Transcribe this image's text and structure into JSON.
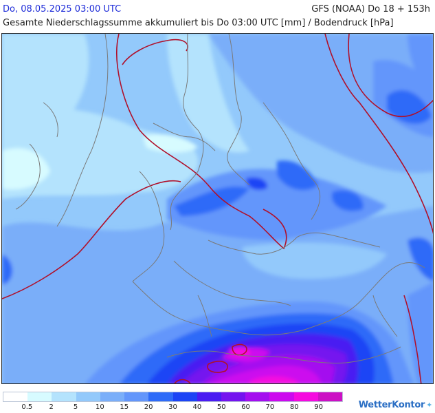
{
  "header": {
    "date_label": "Do, 08.05.2025 03:00 UTC",
    "model_label": "GFS (NOAA) Do 18 + 153h",
    "title": "Gesamte Niederschlagssumme akkumuliert bis Do 03:00 UTC [mm] / Bodendruck [hPa]"
  },
  "map": {
    "units": "mm",
    "overlay": "Bodendruck [hPa]",
    "isobar_color": "#b0102a",
    "border_color": "#7a7a7a"
  },
  "legend": {
    "levels": [
      "0.5",
      "2",
      "5",
      "10",
      "15",
      "20",
      "30",
      "40",
      "50",
      "60",
      "70",
      "80",
      "90"
    ],
    "colors": [
      "#ffffff",
      "#d7fbff",
      "#b4e3fd",
      "#93c9fb",
      "#7aaef9",
      "#6396fb",
      "#2e6bf8",
      "#1c44f5",
      "#4a1cf2",
      "#7414ef",
      "#a40eef",
      "#cc0aee",
      "#f50adf",
      "#cc10c4"
    ]
  },
  "brand": {
    "name": "WetterKontor",
    "logo": "wetterkontor-logo-icon"
  }
}
